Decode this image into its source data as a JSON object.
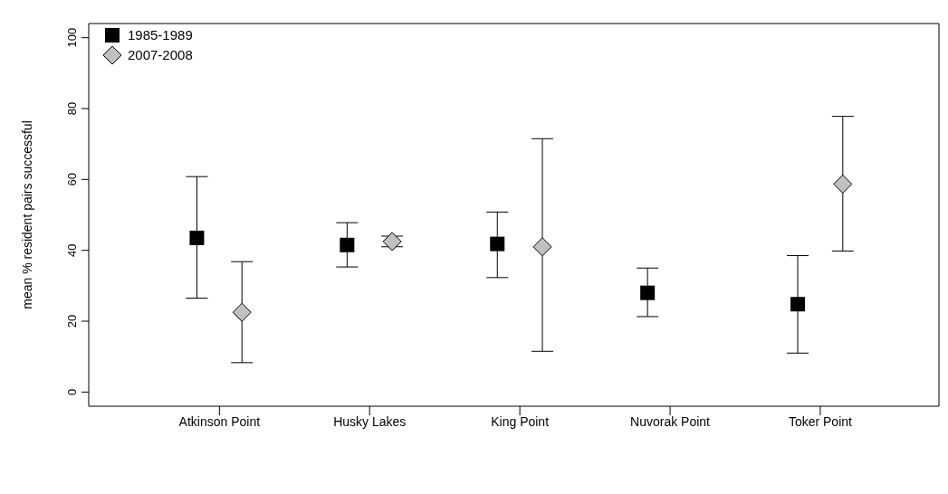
{
  "chart_data": {
    "type": "scatter",
    "ylabel": "mean % resident pairs successful",
    "categories": [
      "Atkinson Point",
      "Husky Lakes",
      "King Point",
      "Nuvorak Point",
      "Toker Point"
    ],
    "ylim": [
      -4,
      104
    ],
    "yticks": [
      0,
      20,
      40,
      60,
      80,
      100
    ],
    "grid": false,
    "legend": "top left",
    "series": [
      {
        "name": "1985-1989",
        "color": "#000000",
        "marker": "square",
        "values": [
          43.5,
          41.5,
          41.8,
          28,
          24.8
        ],
        "errors": [
          [
            26.5,
            60.8
          ],
          [
            35.3,
            47.8
          ],
          [
            32.3,
            50.8
          ],
          [
            21.3,
            35
          ],
          [
            11,
            38.5
          ]
        ]
      },
      {
        "name": "2007-2008",
        "color": "#c0c0c0",
        "marker": "diamond",
        "values": [
          22.5,
          42.5,
          41,
          null,
          58.7
        ],
        "errors": [
          [
            8.3,
            36.8
          ],
          [
            41,
            44
          ],
          [
            11.5,
            71.5
          ],
          null,
          [
            39.8,
            77.8
          ]
        ]
      }
    ]
  }
}
